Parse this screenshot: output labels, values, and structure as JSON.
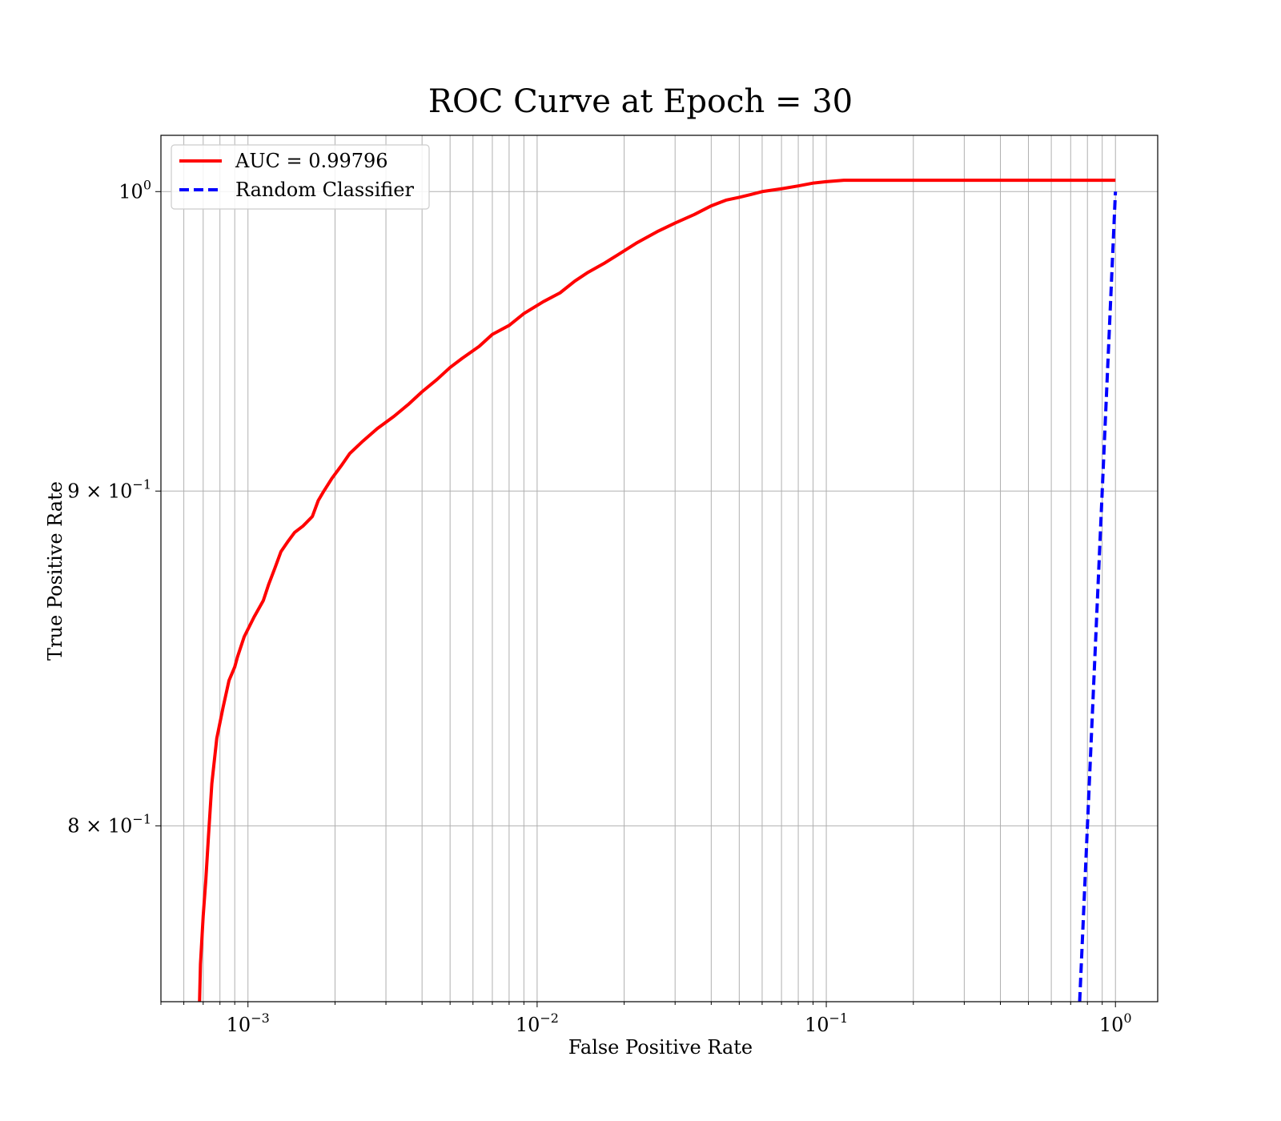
{
  "chart_data": {
    "type": "line",
    "title": "ROC Curve at Epoch = 30",
    "xlabel": "False Positive Rate",
    "ylabel": "True Positive Rate",
    "xscale": "log",
    "yscale": "log",
    "xlim": [
      0.0005,
      1.4
    ],
    "ylim": [
      0.752,
      1.02
    ],
    "grid": true,
    "legend_position": "upper-left",
    "x_ticks": [
      {
        "value": 0.001,
        "base": "10",
        "exp": "−3"
      },
      {
        "value": 0.01,
        "base": "10",
        "exp": "−2"
      },
      {
        "value": 0.1,
        "base": "10",
        "exp": "−1"
      },
      {
        "value": 1.0,
        "base": "10",
        "exp": "0"
      }
    ],
    "y_ticks": [
      {
        "value": 1.0,
        "base": "10",
        "exp": "0"
      },
      {
        "value": 0.9,
        "base": "9 × 10",
        "exp": "−1"
      },
      {
        "value": 0.8,
        "base": "8 × 10",
        "exp": "−1"
      }
    ],
    "series": [
      {
        "name": "AUC = 0.99796",
        "color": "#ff0000",
        "style": "solid",
        "x": [
          0.00068,
          0.000685,
          0.0007,
          0.000715,
          0.00073,
          0.00075,
          0.00078,
          0.00082,
          0.00086,
          0.0009,
          0.00092,
          0.00097,
          0.00105,
          0.00113,
          0.00118,
          0.00124,
          0.0013,
          0.00137,
          0.00145,
          0.00155,
          0.00167,
          0.00175,
          0.00183,
          0.00195,
          0.0021,
          0.00225,
          0.0025,
          0.0028,
          0.0032,
          0.0036,
          0.004,
          0.0045,
          0.005,
          0.0055,
          0.0063,
          0.007,
          0.008,
          0.009,
          0.0105,
          0.012,
          0.0135,
          0.015,
          0.017,
          0.019,
          0.022,
          0.026,
          0.03,
          0.035,
          0.04,
          0.045,
          0.05,
          0.055,
          0.06,
          0.07,
          0.08,
          0.09,
          0.1,
          0.115,
          0.13,
          0.2,
          0.3,
          0.5,
          0.7,
          1.0
        ],
        "y": [
          0.752,
          0.762,
          0.775,
          0.785,
          0.797,
          0.812,
          0.825,
          0.834,
          0.842,
          0.846,
          0.849,
          0.855,
          0.861,
          0.866,
          0.871,
          0.876,
          0.881,
          0.884,
          0.887,
          0.889,
          0.892,
          0.897,
          0.9,
          0.904,
          0.908,
          0.912,
          0.916,
          0.92,
          0.924,
          0.928,
          0.932,
          0.936,
          0.94,
          0.943,
          0.947,
          0.951,
          0.954,
          0.958,
          0.962,
          0.965,
          0.969,
          0.972,
          0.975,
          0.978,
          0.982,
          0.986,
          0.989,
          0.992,
          0.995,
          0.997,
          0.998,
          0.999,
          1.0,
          1.001,
          1.002,
          1.003,
          1.0035,
          1.004,
          1.004,
          1.004,
          1.004,
          1.004,
          1.004,
          1.004
        ]
      },
      {
        "name": "Random Classifier",
        "color": "#0000ff",
        "style": "dashed",
        "x": [
          0.752,
          1.0
        ],
        "y": [
          0.752,
          1.0
        ]
      }
    ]
  }
}
